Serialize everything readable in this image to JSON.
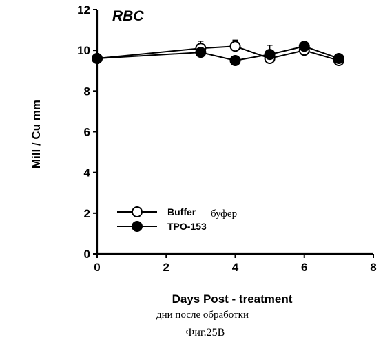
{
  "chart_data": {
    "type": "line",
    "title": "RBC",
    "xlabel": "Days Post - treatment",
    "ylabel": "Mill / Cu mm",
    "xlim": [
      0,
      8
    ],
    "ylim": [
      0,
      12
    ],
    "x_ticks": [
      "0",
      "2",
      "4",
      "6",
      "8"
    ],
    "y_ticks": [
      "0",
      "2",
      "4",
      "6",
      "8",
      "10",
      "12"
    ],
    "grid": false,
    "legend_position": "bottom-left",
    "series": [
      {
        "name": "Buffer",
        "marker": "open-circle",
        "x": [
          0,
          3,
          4,
          5,
          6,
          7
        ],
        "y": [
          9.6,
          10.1,
          10.2,
          9.6,
          10.0,
          9.5
        ],
        "error": [
          0,
          0.35,
          0.3,
          0.3,
          0.15,
          0.1
        ]
      },
      {
        "name": "TPO-153",
        "marker": "filled-circle",
        "x": [
          0,
          3,
          4,
          5,
          6,
          7
        ],
        "y": [
          9.6,
          9.9,
          9.5,
          9.8,
          10.2,
          9.6
        ],
        "error": [
          0,
          0.1,
          0.1,
          0.45,
          0.1,
          0.1
        ]
      }
    ]
  },
  "annotations": {
    "legend_note": "буфер",
    "xlabel_note": "дни после обработки",
    "figure_caption": "Фиг.25В"
  }
}
